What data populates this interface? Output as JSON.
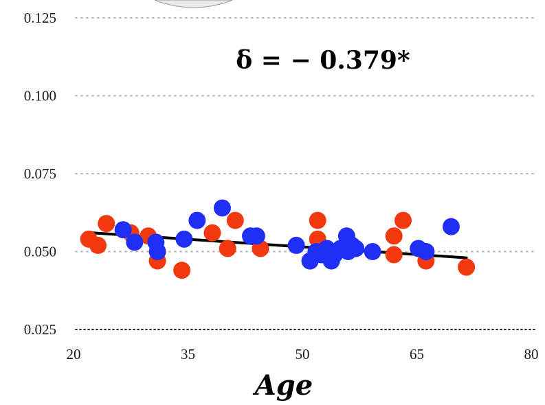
{
  "chart_data": {
    "type": "scatter",
    "xlabel": "Age",
    "ylabel": "",
    "xlim": [
      20,
      80
    ],
    "ylim": [
      0.025,
      0.13
    ],
    "x_ticks": [
      "20",
      "35",
      "50",
      "65",
      "80"
    ],
    "y_ticks": [
      "0.025",
      "0.050",
      "0.075",
      "0.100",
      "0.125"
    ],
    "grid": "horizontal dotted",
    "annotation": "δ = − 0.379*",
    "trend_line": {
      "x": [
        22.5,
        71.5
      ],
      "y": [
        0.056,
        0.048
      ],
      "color": "#000000"
    },
    "series": [
      {
        "color": "#f2380f",
        "points": [
          [
            22.0,
            0.054
          ],
          [
            23.2,
            0.052
          ],
          [
            24.3,
            0.059
          ],
          [
            27.5,
            0.056
          ],
          [
            29.8,
            0.055
          ],
          [
            31.0,
            0.047
          ],
          [
            34.2,
            0.044
          ],
          [
            38.2,
            0.056
          ],
          [
            40.2,
            0.051
          ],
          [
            41.2,
            0.06
          ],
          [
            44.5,
            0.051
          ],
          [
            51.0,
            0.047
          ],
          [
            52.0,
            0.06
          ],
          [
            52.0,
            0.054
          ],
          [
            62.0,
            0.055
          ],
          [
            62.0,
            0.049
          ],
          [
            63.2,
            0.06
          ],
          [
            66.2,
            0.047
          ],
          [
            71.5,
            0.045
          ]
        ]
      },
      {
        "color": "#1f2ff5",
        "points": [
          [
            26.5,
            0.057
          ],
          [
            28.0,
            0.053
          ],
          [
            30.8,
            0.053
          ],
          [
            31.0,
            0.05
          ],
          [
            34.5,
            0.054
          ],
          [
            36.2,
            0.06
          ],
          [
            39.5,
            0.064
          ],
          [
            43.2,
            0.055
          ],
          [
            44.0,
            0.055
          ],
          [
            49.2,
            0.052
          ],
          [
            51.0,
            0.047
          ],
          [
            51.8,
            0.05
          ],
          [
            52.5,
            0.049
          ],
          [
            53.2,
            0.051
          ],
          [
            53.8,
            0.047
          ],
          [
            54.2,
            0.049
          ],
          [
            55.0,
            0.051
          ],
          [
            55.8,
            0.055
          ],
          [
            56.0,
            0.05
          ],
          [
            56.5,
            0.052
          ],
          [
            57.0,
            0.051
          ],
          [
            59.2,
            0.05
          ],
          [
            65.2,
            0.051
          ],
          [
            66.2,
            0.05
          ],
          [
            69.5,
            0.058
          ]
        ]
      }
    ]
  }
}
